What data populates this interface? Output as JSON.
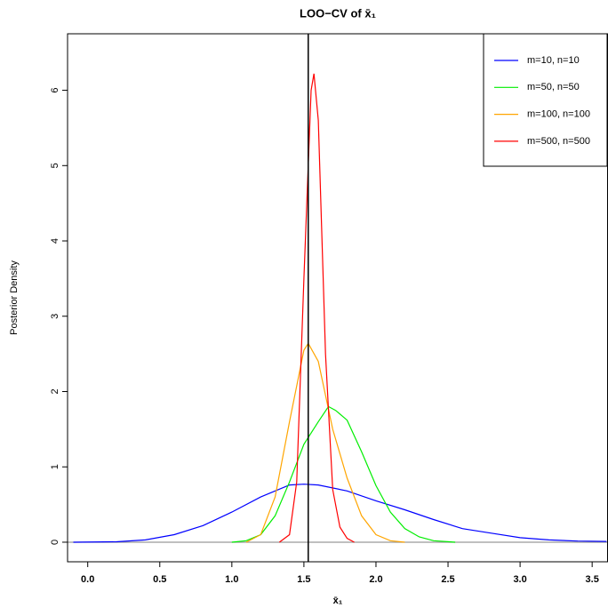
{
  "chart_data": {
    "type": "line",
    "title": "LOO−CV of  x̄₁",
    "x_label": "x̄₁",
    "y_label": "Posterior Density",
    "xlim": [
      -0.14,
      3.61
    ],
    "ylim": [
      -0.26,
      6.75
    ],
    "xticks": [
      {
        "value": 0,
        "label": "0.0"
      },
      0.5,
      {
        "value": 1,
        "label": "1.0"
      },
      1.5,
      {
        "value": 2,
        "label": "2.0"
      },
      2.5,
      {
        "value": 3,
        "label": "3.0"
      },
      3.5
    ],
    "yticks": [
      0,
      1,
      2,
      3,
      4,
      5,
      6
    ],
    "vline": 1.53,
    "hline": 0,
    "legend": "top-right",
    "series": [
      {
        "name": "m=10, n=10",
        "color": "#0000ff",
        "x": [
          -0.1,
          0.2,
          0.4,
          0.6,
          0.8,
          1.0,
          1.2,
          1.4,
          1.5,
          1.6,
          1.8,
          2.0,
          2.2,
          2.4,
          2.6,
          2.8,
          3.0,
          3.2,
          3.4,
          3.6
        ],
        "values": [
          0,
          0.005,
          0.03,
          0.1,
          0.22,
          0.4,
          0.6,
          0.76,
          0.77,
          0.76,
          0.68,
          0.55,
          0.43,
          0.3,
          0.18,
          0.12,
          0.06,
          0.03,
          0.015,
          0.01
        ]
      },
      {
        "name": "m=50, n=50",
        "color": "#00ee00",
        "x": [
          1.0,
          1.1,
          1.2,
          1.3,
          1.4,
          1.5,
          1.6,
          1.67,
          1.72,
          1.8,
          1.9,
          2.0,
          2.1,
          2.2,
          2.3,
          2.4,
          2.55
        ],
        "values": [
          0,
          0.02,
          0.1,
          0.35,
          0.8,
          1.3,
          1.6,
          1.8,
          1.75,
          1.62,
          1.2,
          0.75,
          0.4,
          0.18,
          0.07,
          0.02,
          0
        ]
      },
      {
        "name": "m=100, n=100",
        "color": "#ffa500",
        "x": [
          1.1,
          1.2,
          1.3,
          1.4,
          1.5,
          1.53,
          1.6,
          1.7,
          1.8,
          1.9,
          2.0,
          2.1,
          2.2
        ],
        "values": [
          0,
          0.1,
          0.6,
          1.6,
          2.55,
          2.64,
          2.4,
          1.5,
          0.85,
          0.35,
          0.1,
          0.02,
          0
        ]
      },
      {
        "name": "m=500, n=500",
        "color": "#ff0000",
        "x": [
          1.33,
          1.4,
          1.45,
          1.5,
          1.55,
          1.57,
          1.6,
          1.65,
          1.7,
          1.75,
          1.8,
          1.85
        ],
        "values": [
          0,
          0.1,
          0.8,
          3.5,
          6.0,
          6.22,
          5.6,
          2.5,
          0.7,
          0.2,
          0.05,
          0
        ]
      }
    ]
  }
}
